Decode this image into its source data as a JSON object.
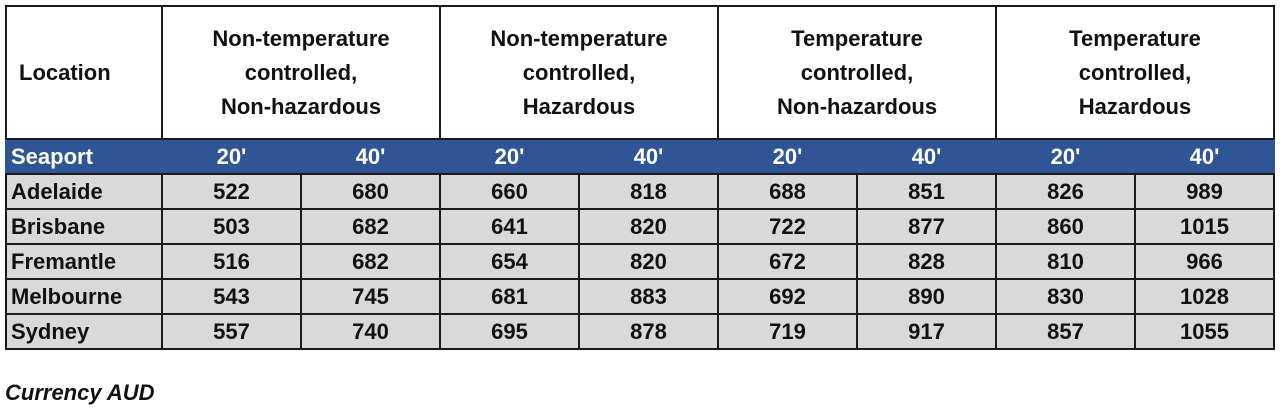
{
  "table": {
    "header": {
      "location": "Location",
      "groups": [
        [
          "Non-temperature",
          "controlled,",
          "Non-hazardous"
        ],
        [
          "Non-temperature",
          "controlled,",
          "Hazardous"
        ],
        [
          "Temperature",
          "controlled,",
          "Non-hazardous"
        ],
        [
          "Temperature",
          "controlled,",
          "Hazardous"
        ]
      ]
    },
    "subheader": [
      "Seaport",
      "20'",
      "40'",
      "20'",
      "40'",
      "20'",
      "40'",
      "20'",
      "40'"
    ],
    "rows": [
      [
        "Adelaide",
        522,
        680,
        660,
        818,
        688,
        851,
        826,
        989
      ],
      [
        "Brisbane",
        503,
        682,
        641,
        820,
        722,
        877,
        860,
        1015
      ],
      [
        "Fremantle",
        516,
        682,
        654,
        820,
        672,
        828,
        810,
        966
      ],
      [
        "Melbourne",
        543,
        745,
        681,
        883,
        692,
        890,
        830,
        1028
      ],
      [
        "Sydney",
        557,
        740,
        695,
        878,
        719,
        917,
        857,
        1055
      ]
    ],
    "note": "Currency AUD"
  }
}
